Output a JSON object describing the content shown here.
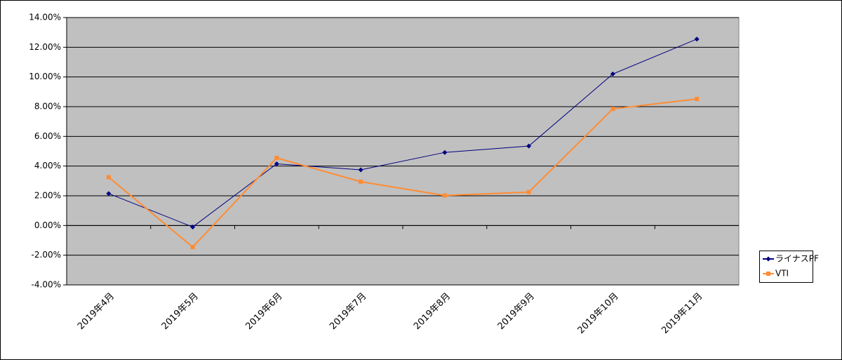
{
  "chart_data": {
    "type": "line",
    "categories": [
      "2019年4月",
      "2019年5月",
      "2019年6月",
      "2019年7月",
      "2019年8月",
      "2019年9月",
      "2019年10月",
      "2019年11月"
    ],
    "series": [
      {
        "name": "ライナスPF",
        "color": "#000080",
        "marker": "diamond",
        "values": [
          2.15,
          -0.1,
          4.15,
          3.75,
          4.92,
          5.35,
          10.2,
          12.55
        ]
      },
      {
        "name": "VTI",
        "color": "#ff8c33",
        "marker": "square",
        "values": [
          3.25,
          -1.45,
          4.55,
          2.95,
          2.02,
          2.25,
          7.85,
          8.52
        ]
      }
    ],
    "ylim": [
      -4,
      14
    ],
    "yticks": [
      {
        "value": -4,
        "label": "-4.00%"
      },
      {
        "value": -2,
        "label": "-2.00%"
      },
      {
        "value": 0,
        "label": "0.00%"
      },
      {
        "value": 2,
        "label": "2.00%"
      },
      {
        "value": 4,
        "label": "4.00%"
      },
      {
        "value": 6,
        "label": "6.00%"
      },
      {
        "value": 8,
        "label": "8.00%"
      },
      {
        "value": 10,
        "label": "10.00%"
      },
      {
        "value": 12,
        "label": "12.00%"
      },
      {
        "value": 14,
        "label": "14.00%"
      }
    ],
    "grid": true,
    "legend": "right"
  }
}
